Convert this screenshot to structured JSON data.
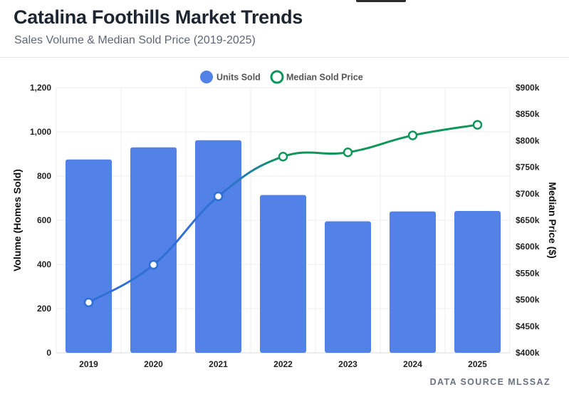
{
  "header": {
    "title": "Catalina Foothills Market Trends",
    "subtitle": "Sales Volume & Median Sold Price (2019-2025)"
  },
  "footer": {
    "source": "DATA SOURCE MLSSAZ"
  },
  "colors": {
    "bar": "#5282e8",
    "line": "#10965b",
    "line_blue": "#2f6fd6",
    "grid": "#ececec"
  },
  "chart_data": {
    "type": "bar+line",
    "categories": [
      "2019",
      "2020",
      "2021",
      "2022",
      "2023",
      "2024",
      "2025"
    ],
    "series": [
      {
        "name": "Units Sold",
        "type": "bar",
        "axis": "left",
        "values": [
          875,
          930,
          962,
          714,
          595,
          640,
          642
        ]
      },
      {
        "name": "Median Sold Price",
        "type": "line",
        "axis": "right",
        "values": [
          495000,
          566000,
          695000,
          770000,
          778000,
          810000,
          830000
        ]
      }
    ],
    "legend": [
      "Units Sold",
      "Median Sold Price"
    ],
    "legend_position": "top-center",
    "y_left": {
      "label": "Volume (Homes Sold)",
      "min": 0,
      "max": 1200,
      "ticks": [
        "0",
        "200",
        "400",
        "600",
        "800",
        "1,000",
        "1,200"
      ]
    },
    "y_right": {
      "label": "Median Price ($)",
      "min": 400000,
      "max": 900000,
      "ticks": [
        "$400k",
        "$450k",
        "$500k",
        "$550k",
        "$600k",
        "$650k",
        "$700k",
        "$750k",
        "$800k",
        "$850k",
        "$900k"
      ]
    },
    "grid": true
  }
}
